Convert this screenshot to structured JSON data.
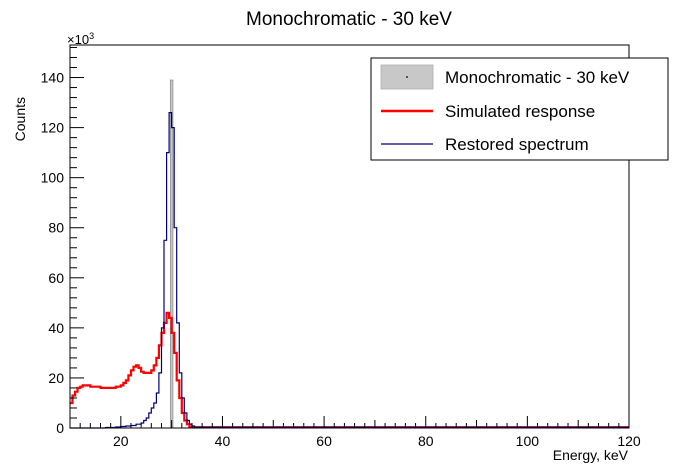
{
  "chart_data": {
    "type": "line",
    "title": "Monochromatic - 30 keV",
    "xlabel": "Energy, keV",
    "ylabel": "Counts",
    "y_multiplier_label": "×10",
    "y_multiplier_exp": "3",
    "xlim": [
      10,
      120
    ],
    "ylim": [
      0,
      153
    ],
    "x_ticks": [
      20,
      40,
      60,
      80,
      100,
      120
    ],
    "y_ticks": [
      0,
      20,
      40,
      60,
      80,
      100,
      120,
      140
    ],
    "legend_position": "top-right",
    "series": [
      {
        "name": "Monochromatic - 30 keV",
        "style": "filled-bar",
        "color": "#c8c8c8",
        "edge_color": "#909090",
        "bin_low": 29.75,
        "bin_high": 30.25,
        "value": 139
      },
      {
        "name": "Simulated response",
        "style": "step",
        "color": "#ff0000",
        "x": [
          10,
          10.5,
          11,
          11.5,
          12,
          12.5,
          13,
          14,
          15,
          16,
          17,
          18,
          19,
          20,
          20.5,
          21,
          21.5,
          22,
          22.5,
          23,
          23.5,
          24,
          24.5,
          25,
          25.5,
          26,
          26.5,
          27,
          27.5,
          28,
          28.5,
          29,
          29.5,
          30,
          30.5,
          31,
          31.5,
          32,
          32.5,
          33,
          33.5,
          34,
          120
        ],
        "y": [
          10,
          13,
          14.5,
          16,
          16.5,
          17,
          17,
          16.5,
          16.5,
          16,
          16,
          16,
          16.5,
          17,
          18,
          19,
          21,
          23,
          24.5,
          25,
          24,
          22.5,
          22,
          22,
          22,
          23,
          25,
          28,
          33,
          38,
          42,
          46,
          44,
          38,
          30,
          19,
          12,
          6,
          3,
          1.5,
          0.5,
          0.3,
          0.3
        ]
      },
      {
        "name": "Restored spectrum",
        "style": "step",
        "color": "#00007f",
        "x": [
          10,
          17,
          19,
          20,
          21,
          22,
          23,
          24,
          24.5,
          25,
          25.5,
          26,
          26.5,
          27,
          27.5,
          28,
          28.5,
          29,
          29.5,
          30,
          30.5,
          31,
          31.5,
          32,
          32.5,
          33,
          33.5,
          34,
          34.5,
          120
        ],
        "y": [
          0,
          0.2,
          0.4,
          0.6,
          0.8,
          1,
          1.5,
          2,
          3,
          4,
          6,
          8,
          10,
          14,
          22,
          40,
          75,
          110,
          126,
          120,
          80,
          42,
          22,
          12,
          6,
          3,
          1.5,
          0.8,
          0.3,
          0.3
        ]
      }
    ]
  }
}
